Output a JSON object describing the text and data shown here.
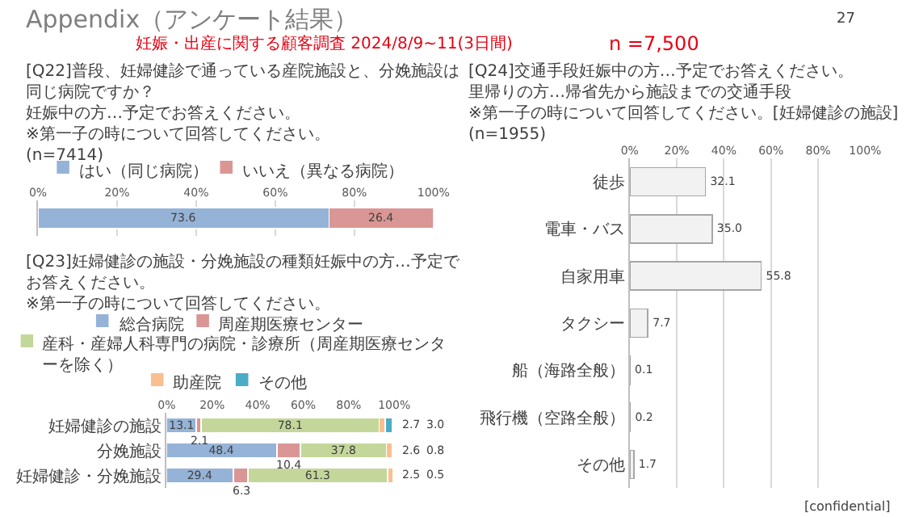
{
  "chart_data": [
    {
      "type": "bar",
      "orientation": "horizontal",
      "stacked": true,
      "title": "[Q22]普段、妊婦健診で通っている産院施設と、分娩施設は同じ病院ですか？妊娠中の方…予定でお答えください。※第一子の時について回答してください。",
      "subtitle": "(n=7414)",
      "categories": [
        null
      ],
      "series": [
        {
          "name": "はい（同じ病院）",
          "color": "#95b3d7",
          "values": [
            73.6
          ],
          "value_labels": [
            "73.6"
          ]
        },
        {
          "name": "いいえ（異なる病院）",
          "color": "#da9694",
          "values": [
            26.4
          ],
          "value_labels": [
            "26.4"
          ]
        }
      ],
      "xlim": [
        0,
        100
      ],
      "xticks": [
        {
          "value": 0,
          "label": "0%"
        },
        {
          "value": 20,
          "label": "20%"
        },
        {
          "value": 40,
          "label": "40%"
        },
        {
          "value": 60,
          "label": "60%"
        },
        {
          "value": 80,
          "label": "80%"
        },
        {
          "value": 100,
          "label": "100%"
        }
      ],
      "grid": "x",
      "legend": "top",
      "annotations": [
        "Appendix（アンケート結果）",
        "27",
        "妊娠・出産に関する顧客調査 2024/8/9~11(3日間)",
        "n =7,500"
      ]
    },
    {
      "type": "bar",
      "orientation": "horizontal",
      "stacked": true,
      "title": "[Q23]妊婦健診の施設・分娩施設の種類妊娠中の方…予定でお答えください。※第一子の時について回答してください。",
      "categories": [
        "妊婦健診の施設",
        "分娩施設",
        "妊婦健診・分娩施設"
      ],
      "series": [
        {
          "name": "総合病院",
          "color": "#95b3d7",
          "values": [
            13.1,
            48.4,
            29.4
          ],
          "value_labels": [
            "13.1",
            "48.4",
            "29.4"
          ]
        },
        {
          "name": "周産期医療センター",
          "color": "#da9694",
          "values": [
            2.1,
            10.4,
            6.3
          ],
          "value_labels": [
            "2.1",
            "10.4",
            "6.3"
          ]
        },
        {
          "name": "産科・産婦人科専門の病院・診療所（周産期医療センターを除く）",
          "color": "#c4d79b",
          "values": [
            78.1,
            37.8,
            61.3
          ],
          "value_labels": [
            "78.1",
            "37.8",
            "61.3"
          ]
        },
        {
          "name": "助産院",
          "color": "#fabf8f",
          "values": [
            2.7,
            2.6,
            2.5
          ],
          "value_labels": [
            "2.7",
            "2.6",
            "2.5"
          ]
        },
        {
          "name": "その他",
          "color": "#4bacc6",
          "values": [
            3.0,
            0.8,
            0.5
          ],
          "value_labels": [
            "3.0",
            "0.8",
            "0.5"
          ]
        }
      ],
      "xlim": [
        0,
        100
      ],
      "xticks": [
        {
          "value": 0,
          "label": "0%"
        },
        {
          "value": 20,
          "label": "20%"
        },
        {
          "value": 40,
          "label": "40%"
        },
        {
          "value": 60,
          "label": "60%"
        },
        {
          "value": 80,
          "label": "80%"
        },
        {
          "value": 100,
          "label": "100%"
        }
      ],
      "legend": "top"
    },
    {
      "type": "bar",
      "orientation": "horizontal",
      "title": "[Q24]交通手段妊娠中の方…予定でお答えください。里帰りの方…帰省先から施設までの交通手段※第一子の時について回答してください。[妊婦健診の施設]",
      "subtitle": "(n=1955)",
      "categories": [
        "徒歩",
        "電車・バス",
        "自家用車",
        "タクシー",
        "船（海路全般）",
        "飛行機（空路全般）",
        "その他"
      ],
      "series": [
        {
          "color": "#f2f2f2",
          "values": [
            32.1,
            35.0,
            55.8,
            7.7,
            0.1,
            0.2,
            1.7
          ],
          "value_labels": [
            "32.1",
            "35.0",
            "55.8",
            "7.7",
            "0.1",
            "0.2",
            "1.7"
          ]
        }
      ],
      "xlim": [
        0,
        100
      ],
      "xticks": [
        {
          "value": 0,
          "label": "0%"
        },
        {
          "value": 20,
          "label": "20%"
        },
        {
          "value": 40,
          "label": "40%"
        },
        {
          "value": 60,
          "label": "60%"
        },
        {
          "value": 80,
          "label": "80%"
        },
        {
          "value": 100,
          "label": "100%"
        }
      ],
      "grid": "x",
      "annotations": [
        "[confidential]"
      ]
    }
  ]
}
